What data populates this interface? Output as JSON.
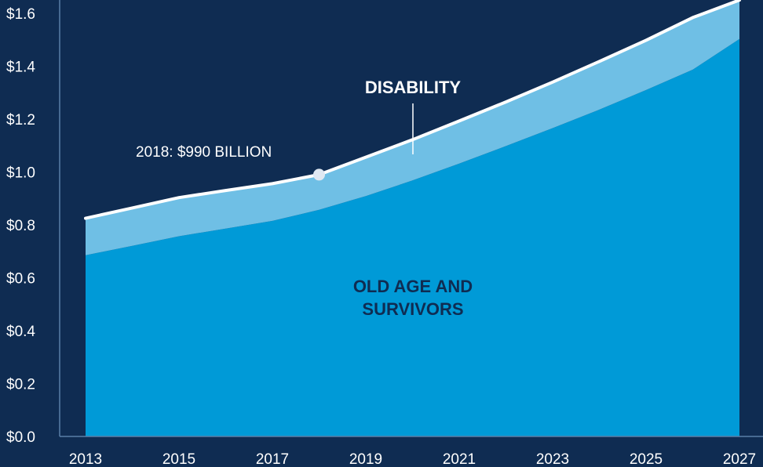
{
  "chart_data": {
    "type": "area",
    "stacked": true,
    "x": [
      2013,
      2014,
      2015,
      2016,
      2017,
      2018,
      2019,
      2020,
      2021,
      2022,
      2023,
      2024,
      2025,
      2026,
      2027
    ],
    "series": [
      {
        "name": "OLD AGE AND SURVIVORS",
        "color": "#009ad7",
        "values": [
          0.685,
          0.721,
          0.757,
          0.786,
          0.815,
          0.857,
          0.909,
          0.968,
          1.032,
          1.098,
          1.166,
          1.236,
          1.31,
          1.387,
          1.503
        ]
      },
      {
        "name": "DISABILITY",
        "color": "#6fbfe5",
        "values": [
          0.14,
          0.143,
          0.146,
          0.144,
          0.141,
          0.133,
          0.147,
          0.154,
          0.161,
          0.167,
          0.174,
          0.182,
          0.188,
          0.197,
          0.147
        ]
      }
    ],
    "ylim": [
      0,
      1.6
    ],
    "yticks": [
      "$0.0",
      "$0.2",
      "$0.4",
      "$0.6",
      "$0.8",
      "$1.0",
      "$1.2",
      "$1.4",
      "$1.6"
    ],
    "xticks": [
      "2013",
      "2015",
      "2017",
      "2019",
      "2021",
      "2023",
      "2025",
      "2027"
    ],
    "annotations": [
      {
        "text": "2018: $990 BILLION",
        "x": 2018,
        "y": 0.99
      }
    ],
    "series_labels": {
      "disability": "DISABILITY",
      "oasi_line1": "OLD AGE AND",
      "oasi_line2": "SURVIVORS"
    },
    "total_line_color": "#ffffff",
    "axis_color": "#5a7fa8",
    "background": "#0f2c52"
  }
}
